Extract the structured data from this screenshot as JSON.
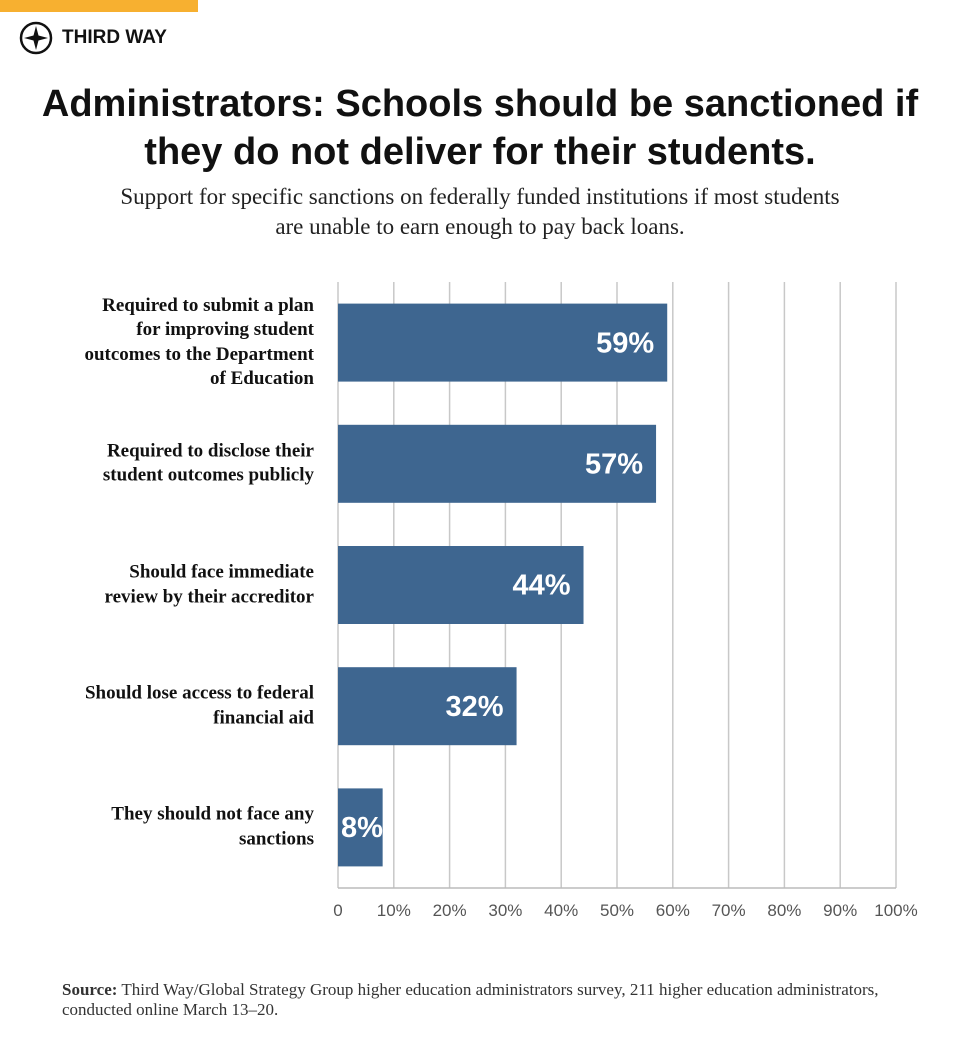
{
  "brand": "THIRD WAY",
  "source_label": "Source:",
  "source": "Third Way/Global Strategy Group higher education administrators survey, 211 higher education administrators, conducted online March 13–20.",
  "chart_data": {
    "type": "bar",
    "orientation": "horizontal",
    "title": "Administrators: Schools should be sanctioned if they do not deliver for their students.",
    "subtitle": "Support for specific sanctions on federally funded institutions if most students are unable to earn enough to pay back loans.",
    "categories": [
      "Required to submit a plan for improving student outcomes to the Department of Education",
      "Required to disclose their student outcomes publicly",
      "Should face immediate review by their accreditor",
      "Should lose access to federal financial aid",
      "They should not face any sanctions"
    ],
    "values": [
      59,
      57,
      44,
      32,
      8
    ],
    "value_labels": [
      "59%",
      "57%",
      "44%",
      "32%",
      "8%"
    ],
    "color": "#3e6690",
    "xlim": [
      0,
      100
    ],
    "xticks": [
      0,
      {
        "value": 10,
        "label": "10%"
      },
      {
        "value": 20,
        "label": "20%"
      },
      {
        "value": 30,
        "label": "30%"
      },
      {
        "value": 40,
        "label": "40%"
      },
      {
        "value": 50,
        "label": "50%"
      },
      {
        "value": 60,
        "label": "60%"
      },
      {
        "value": 70,
        "label": "70%"
      },
      {
        "value": 80,
        "label": "80%"
      },
      {
        "value": 90,
        "label": "90%"
      },
      {
        "value": 100,
        "label": "100%"
      }
    ],
    "grid": true
  }
}
